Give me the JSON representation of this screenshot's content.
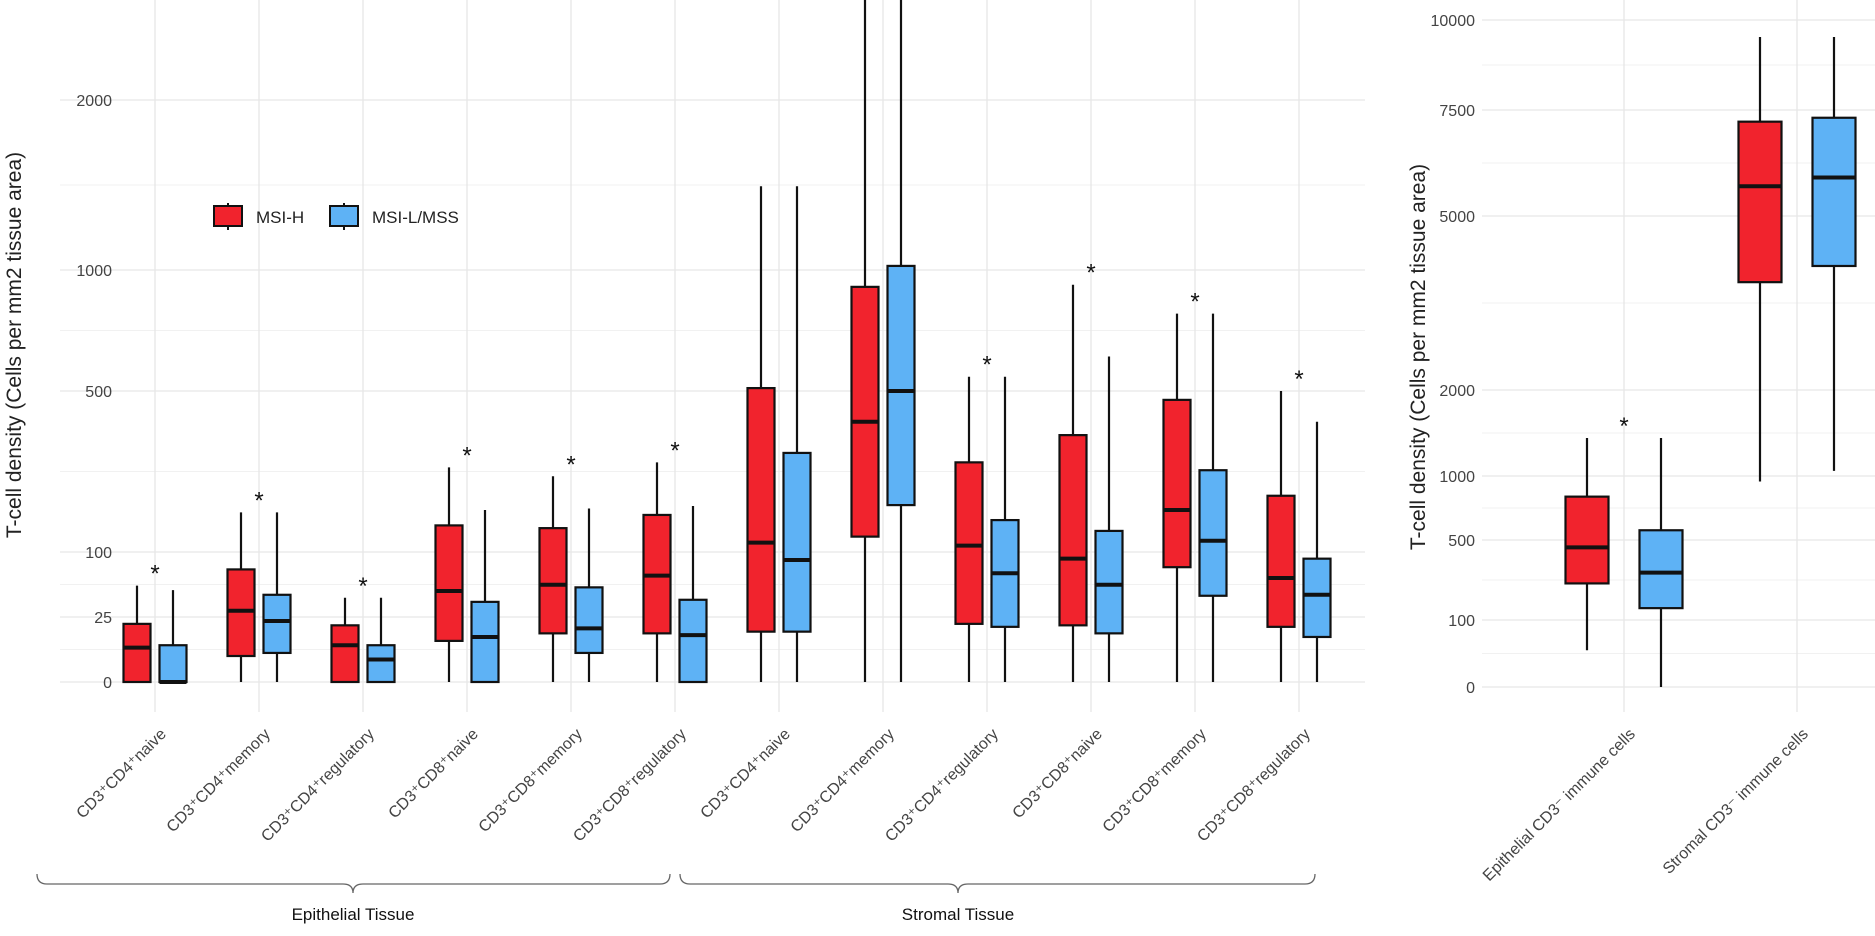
{
  "colors": {
    "msi_h": "#f1232d",
    "msi_l": "#5eb2f5",
    "grid": "#e6e6e6",
    "line": "#111111"
  },
  "legend": {
    "items": [
      "MSI-H",
      "MSI-L/MSS"
    ],
    "position": "top-left"
  },
  "chart_data": [
    {
      "type": "box",
      "ylabel": "T-cell density (Cells per mm2 tissue area)",
      "yticks": [
        0,
        25,
        100,
        500,
        1000,
        2000
      ],
      "ylim": [
        0,
        2850
      ],
      "grid": true,
      "series": [
        "MSI-H",
        "MSI-L/MSS"
      ],
      "categories": [
        {
          "label": "CD3⁺CD4⁺naive",
          "sig": true,
          "boxes": [
            {
              "lo": 0,
              "q1": 0,
              "med": 7,
              "q3": 20,
              "hi": 55
            },
            {
              "lo": 0,
              "q1": 0,
              "med": 0,
              "q3": 8,
              "hi": 50
            }
          ]
        },
        {
          "label": "CD3⁺CD4⁺memory",
          "sig": true,
          "boxes": [
            {
              "lo": 0,
              "q1": 4,
              "med": 30,
              "q3": 75,
              "hi": 170
            },
            {
              "lo": 0,
              "q1": 5,
              "med": 22,
              "q3": 45,
              "hi": 170
            }
          ]
        },
        {
          "label": "CD3⁺CD4⁺regulatory",
          "sig": true,
          "boxes": [
            {
              "lo": 0,
              "q1": 0,
              "med": 8,
              "q3": 19,
              "hi": 42
            },
            {
              "lo": 0,
              "q1": 0,
              "med": 3,
              "q3": 8,
              "hi": 42
            }
          ]
        },
        {
          "label": "CD3⁺CD8⁺naive",
          "sig": true,
          "boxes": [
            {
              "lo": 0,
              "q1": 10,
              "med": 49,
              "q3": 145,
              "hi": 272
            },
            {
              "lo": 0,
              "q1": 0,
              "med": 12,
              "q3": 38,
              "hi": 175
            }
          ]
        },
        {
          "label": "CD3⁺CD8⁺memory",
          "sig": true,
          "boxes": [
            {
              "lo": 0,
              "q1": 14,
              "med": 56,
              "q3": 140,
              "hi": 250
            },
            {
              "lo": 0,
              "q1": 5,
              "med": 17,
              "q3": 53,
              "hi": 178
            }
          ]
        },
        {
          "label": "CD3⁺CD8⁺regulatory",
          "sig": true,
          "boxes": [
            {
              "lo": 0,
              "q1": 14,
              "med": 67,
              "q3": 165,
              "hi": 285
            },
            {
              "lo": 0,
              "q1": 0,
              "med": 13,
              "q3": 40,
              "hi": 183
            }
          ]
        },
        {
          "label": "CD3⁺CD4⁺naive",
          "sig": false,
          "boxes": [
            {
              "lo": 0,
              "q1": 15,
              "med": 115,
              "q3": 510,
              "hi": 1450
            },
            {
              "lo": 0,
              "q1": 15,
              "med": 88,
              "q3": 310,
              "hi": 1450
            }
          ]
        },
        {
          "label": "CD3⁺CD4⁺memory",
          "sig": true,
          "boxes": [
            {
              "lo": 0,
              "q1": 125,
              "med": 400,
              "q3": 920,
              "hi": 2800
            },
            {
              "lo": 0,
              "q1": 185,
              "med": 500,
              "q3": 1020,
              "hi": 2800
            }
          ]
        },
        {
          "label": "CD3⁺CD4⁺regulatory",
          "sig": true,
          "boxes": [
            {
              "lo": 0,
              "q1": 20,
              "med": 110,
              "q3": 285,
              "hi": 550
            },
            {
              "lo": 0,
              "q1": 18,
              "med": 70,
              "q3": 155,
              "hi": 550
            }
          ]
        },
        {
          "label": "CD3⁺CD8⁺naive",
          "sig": true,
          "boxes": [
            {
              "lo": 0,
              "q1": 19,
              "med": 90,
              "q3": 360,
              "hi": 930
            },
            {
              "lo": 0,
              "q1": 14,
              "med": 56,
              "q3": 135,
              "hi": 625
            }
          ]
        },
        {
          "label": "CD3⁺CD8⁺memory",
          "sig": true,
          "boxes": [
            {
              "lo": 0,
              "q1": 78,
              "med": 175,
              "q3": 470,
              "hi": 800
            },
            {
              "lo": 0,
              "q1": 44,
              "med": 118,
              "q3": 265,
              "hi": 800
            }
          ]
        },
        {
          "label": "CD3⁺CD8⁺regulatory",
          "sig": true,
          "boxes": [
            {
              "lo": 0,
              "q1": 18,
              "med": 64,
              "q3": 205,
              "hi": 500
            },
            {
              "lo": 0,
              "q1": 12,
              "med": 45,
              "q3": 90,
              "hi": 400
            }
          ]
        }
      ],
      "groups": [
        {
          "label": "Epithelial Tissue",
          "from": 0,
          "to": 5
        },
        {
          "label": "Stromal Tissue",
          "from": 6,
          "to": 11
        }
      ]
    },
    {
      "type": "box",
      "ylabel": "T-cell density (Cells per mm2 tissue area)",
      "yticks": [
        0,
        100,
        500,
        1000,
        2000,
        5000,
        7500,
        10000
      ],
      "ylim": [
        0,
        10200
      ],
      "grid": true,
      "series": [
        "MSI-H",
        "MSI-L/MSS"
      ],
      "categories": [
        {
          "label": "Epithelial CD3⁻ immune cells",
          "sig": true,
          "boxes": [
            {
              "lo": 30,
              "q1": 245,
              "med": 450,
              "q3": 820,
              "hi": 1400
            },
            {
              "lo": 0,
              "q1": 140,
              "med": 300,
              "q3": 565,
              "hi": 1400
            }
          ]
        },
        {
          "label": "Stromal CD3⁻ immune cells",
          "sig": false,
          "boxes": [
            {
              "lo": 950,
              "q1": 3700,
              "med": 5650,
              "q3": 7200,
              "hi": 9500
            },
            {
              "lo": 1050,
              "q1": 4000,
              "med": 5850,
              "q3": 7300,
              "hi": 9500
            }
          ]
        }
      ]
    }
  ]
}
